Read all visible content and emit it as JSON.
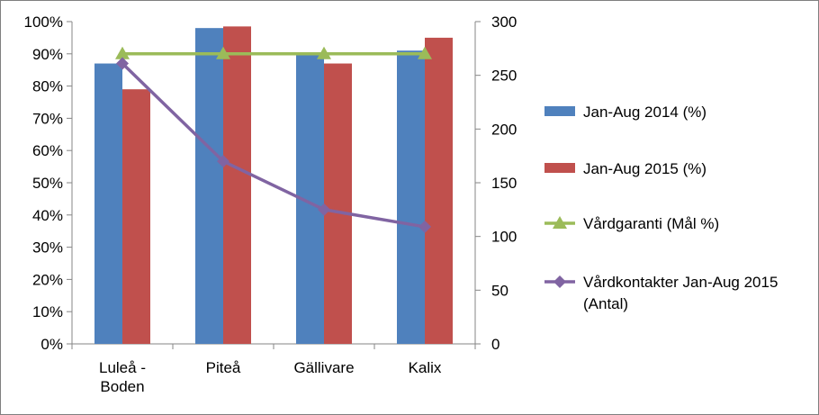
{
  "chart_data": {
    "type": "bar",
    "categories": [
      [
        "Luleå -",
        "Boden"
      ],
      [
        "Piteå"
      ],
      [
        "Gällivare"
      ],
      [
        "Kalix"
      ]
    ],
    "y_left": {
      "ylim": [
        0,
        100
      ],
      "ticks": [
        0,
        10,
        20,
        30,
        40,
        50,
        60,
        70,
        80,
        90,
        100
      ],
      "tick_suffix": "%"
    },
    "y_right": {
      "ylim": [
        0,
        300
      ],
      "ticks": [
        0,
        50,
        100,
        150,
        200,
        250,
        300
      ]
    },
    "series": [
      {
        "name": "Jan-Aug 2014 (%)",
        "kind": "bar",
        "axis": "left",
        "color": "#4f81bd",
        "values": [
          87,
          98,
          90,
          91
        ]
      },
      {
        "name": "Jan-Aug 2015 (%)",
        "kind": "bar",
        "axis": "left",
        "color": "#c0504d",
        "values": [
          79,
          98.5,
          87,
          95
        ]
      },
      {
        "name": "Vårdgaranti (Mål %)",
        "kind": "line",
        "marker": "triangle",
        "axis": "left",
        "color": "#9bbb59",
        "values": [
          90,
          90,
          90,
          90
        ]
      },
      {
        "name": [
          "Vårdkontakter Jan-Aug 2015",
          "(Antal)"
        ],
        "kind": "line",
        "marker": "diamond",
        "axis": "right",
        "color": "#8064a2",
        "values": [
          261,
          170,
          125,
          109
        ]
      }
    ],
    "grid": false,
    "legend_position": "right"
  }
}
